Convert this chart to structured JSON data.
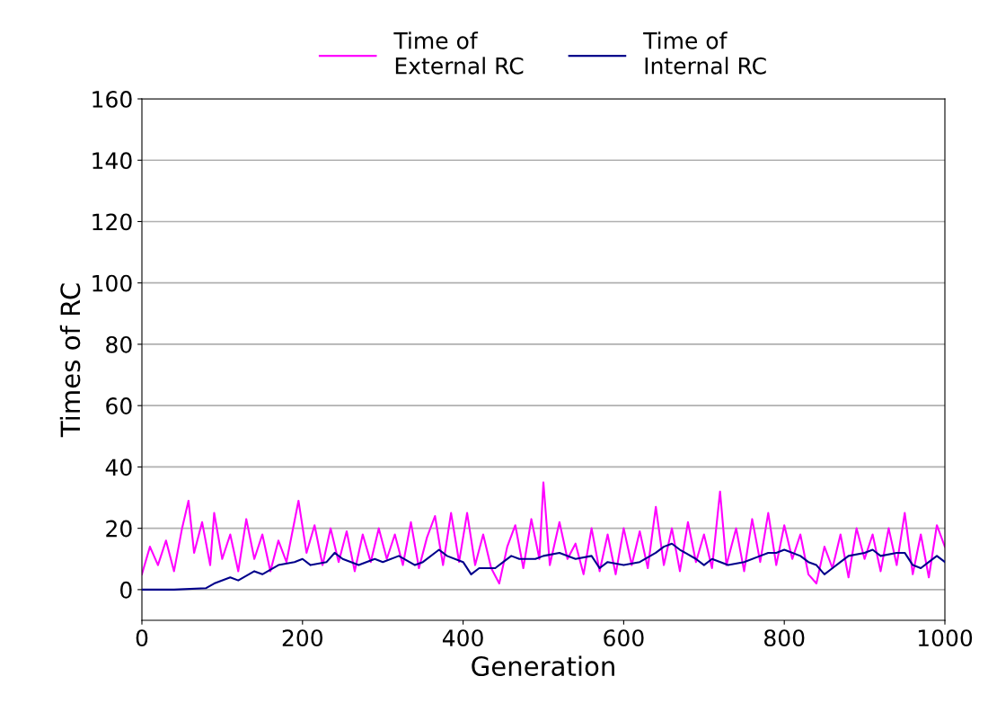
{
  "chart_data": {
    "type": "line",
    "xlabel": "Generation",
    "ylabel": "Times of RC",
    "xlim": [
      0,
      1000
    ],
    "xticks": [
      0,
      200,
      400,
      600,
      800,
      1000
    ],
    "ylim": [
      -10,
      160
    ],
    "yticks": [
      0,
      20,
      40,
      60,
      80,
      100,
      120,
      140,
      160
    ],
    "grid": "y",
    "legend": "top",
    "series": [
      {
        "name": "Time of\nExternal RC",
        "color": "#ff00ff",
        "x": [
          0,
          10,
          20,
          30,
          40,
          50,
          58,
          65,
          75,
          85,
          90,
          100,
          110,
          120,
          130,
          140,
          150,
          160,
          170,
          180,
          195,
          205,
          215,
          225,
          235,
          245,
          255,
          265,
          275,
          285,
          295,
          305,
          315,
          325,
          335,
          345,
          355,
          365,
          375,
          385,
          395,
          405,
          415,
          425,
          435,
          445,
          455,
          465,
          475,
          485,
          495,
          500,
          508,
          520,
          530,
          540,
          550,
          560,
          570,
          580,
          590,
          600,
          610,
          620,
          630,
          640,
          650,
          660,
          670,
          680,
          690,
          700,
          710,
          720,
          728,
          740,
          750,
          760,
          770,
          780,
          790,
          800,
          810,
          820,
          830,
          840,
          850,
          860,
          870,
          880,
          890,
          900,
          910,
          920,
          930,
          940,
          950,
          960,
          970,
          980,
          990,
          1000
        ],
        "values": [
          5,
          14,
          8,
          16,
          6,
          20,
          29,
          12,
          22,
          8,
          25,
          10,
          18,
          6,
          23,
          10,
          18,
          6,
          16,
          9,
          29,
          12,
          21,
          8,
          20,
          9,
          19,
          6,
          18,
          9,
          20,
          10,
          18,
          8,
          22,
          7,
          17,
          24,
          8,
          25,
          9,
          25,
          8,
          18,
          7,
          2,
          14,
          21,
          7,
          23,
          10,
          35,
          8,
          22,
          10,
          15,
          5,
          20,
          6,
          18,
          5,
          20,
          8,
          19,
          7,
          27,
          8,
          20,
          6,
          22,
          9,
          18,
          7,
          32,
          8,
          20,
          6,
          23,
          9,
          25,
          8,
          21,
          10,
          18,
          5,
          2,
          14,
          7,
          18,
          4,
          20,
          10,
          18,
          6,
          20,
          8,
          25,
          5,
          18,
          4,
          21,
          14
        ]
      },
      {
        "name": "Time of\nInternal RC",
        "color": "#00008b",
        "x": [
          0,
          40,
          80,
          90,
          110,
          120,
          140,
          150,
          170,
          190,
          200,
          210,
          230,
          240,
          250,
          270,
          290,
          300,
          320,
          340,
          350,
          370,
          380,
          400,
          410,
          420,
          440,
          450,
          460,
          470,
          490,
          500,
          520,
          540,
          560,
          570,
          580,
          600,
          620,
          640,
          650,
          660,
          670,
          690,
          700,
          710,
          730,
          750,
          770,
          780,
          790,
          800,
          820,
          830,
          840,
          850,
          860,
          870,
          880,
          900,
          910,
          920,
          940,
          950,
          960,
          970,
          980,
          990,
          1000
        ],
        "values": [
          0,
          0,
          0.5,
          2,
          4,
          3,
          6,
          5,
          8,
          9,
          10,
          8,
          9,
          12,
          10,
          8,
          10,
          9,
          11,
          8,
          9,
          13,
          11,
          9,
          5,
          7,
          7,
          9,
          11,
          10,
          10,
          11,
          12,
          10,
          11,
          7,
          9,
          8,
          9,
          12,
          14,
          15,
          13,
          10,
          8,
          10,
          8,
          9,
          11,
          12,
          12,
          13,
          11,
          9,
          8,
          5,
          7,
          9,
          11,
          12,
          13,
          11,
          12,
          12,
          8,
          7,
          9,
          11,
          9
        ]
      }
    ]
  }
}
